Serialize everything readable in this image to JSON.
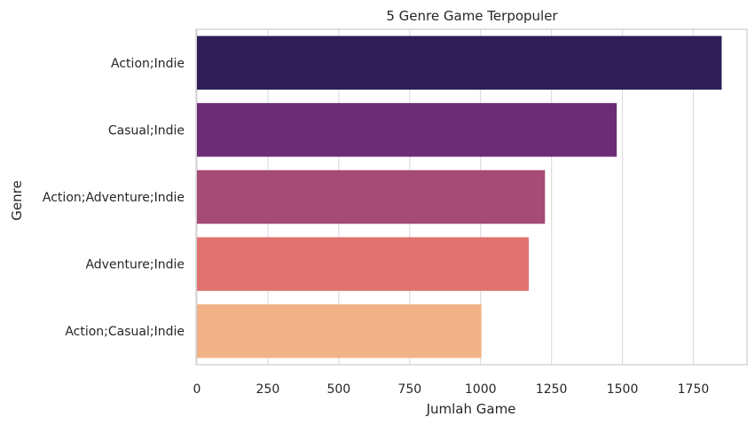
{
  "chart_data": {
    "type": "bar",
    "orientation": "horizontal",
    "title": "5 Genre Game Terpopuler",
    "xlabel": "Jumlah Game",
    "ylabel": "Genre",
    "categories": [
      "Action;Indie",
      "Casual;Indie",
      "Action;Adventure;Indie",
      "Adventure;Indie",
      "Action;Casual;Indie"
    ],
    "values": [
      1850,
      1480,
      1227,
      1170,
      1003
    ],
    "colors": [
      "#2d1e57",
      "#6c2c76",
      "#a64a76",
      "#e07370",
      "#f0b286"
    ],
    "xlim": [
      0,
      1945
    ],
    "xticks": [
      0,
      250,
      500,
      750,
      1000,
      1250,
      1500,
      1750
    ],
    "grid": "vertical",
    "legend": "none"
  }
}
